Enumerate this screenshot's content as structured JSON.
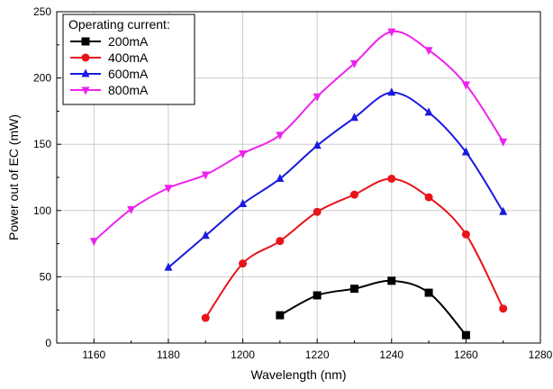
{
  "chart_data": {
    "type": "line",
    "xlabel": "Wavelength (nm)",
    "ylabel": "Power out of EC (mW)",
    "xlim": [
      1150,
      1280
    ],
    "ylim": [
      0,
      250
    ],
    "xticks": [
      1160,
      1180,
      1200,
      1220,
      1240,
      1260,
      1280
    ],
    "yticks": [
      0,
      50,
      100,
      150,
      200,
      250
    ],
    "grid": true,
    "legend_title": "Operating current:",
    "legend_position": "top-left",
    "series": [
      {
        "name": "200mA",
        "color": "#000000",
        "marker": "square",
        "x": [
          1210,
          1220,
          1230,
          1240,
          1250,
          1260
        ],
        "y": [
          21,
          36,
          41,
          47,
          38,
          6
        ]
      },
      {
        "name": "400mA",
        "color": "#e8141a",
        "marker": "circle",
        "x": [
          1190,
          1200,
          1210,
          1220,
          1230,
          1240,
          1250,
          1260,
          1270
        ],
        "y": [
          19,
          60,
          77,
          99,
          112,
          124,
          110,
          82,
          26
        ]
      },
      {
        "name": "600mA",
        "color": "#1a1ae0",
        "marker": "triangle-up",
        "x": [
          1180,
          1190,
          1200,
          1210,
          1220,
          1230,
          1240,
          1250,
          1260,
          1270
        ],
        "y": [
          57,
          81,
          105,
          124,
          149,
          170,
          189,
          174,
          144,
          99
        ]
      },
      {
        "name": "800mA",
        "color": "#ee22ee",
        "marker": "triangle-down",
        "x": [
          1160,
          1170,
          1180,
          1190,
          1200,
          1210,
          1220,
          1230,
          1240,
          1250,
          1260,
          1270
        ],
        "y": [
          77,
          101,
          117,
          127,
          143,
          157,
          186,
          211,
          235,
          221,
          195,
          152
        ]
      }
    ]
  }
}
